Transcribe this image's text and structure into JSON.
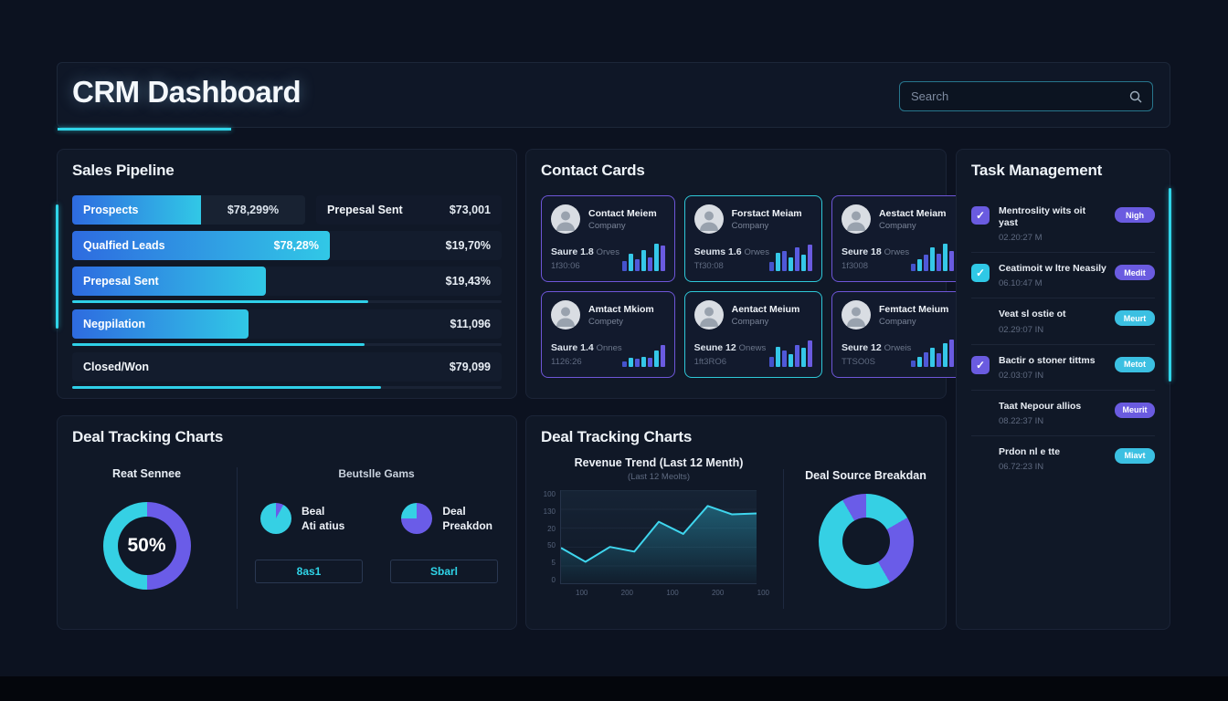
{
  "colors": {
    "accent": "#2fd4e8",
    "purple": "#6a5be0",
    "cyan": "#35c8e8"
  },
  "icons": {
    "check": "✓",
    "search": "magnifier"
  },
  "header": {
    "title": "CRM Dashboard",
    "search_placeholder": "Search"
  },
  "pipeline": {
    "title": "Sales Pipeline",
    "row1": {
      "label": "Prospects",
      "value": "$78,299%",
      "bar_pct": 30,
      "label2": "Prepesal Sent",
      "value2": "$73,001"
    },
    "rows": [
      {
        "label": "Qualfied Leads",
        "inner_value": "$78,28%",
        "value": "$19,70%",
        "bar_pct": 60
      },
      {
        "label": "Prepesal Sent",
        "value": "$19,43%",
        "bar_pct": 45,
        "line_pct": 69
      },
      {
        "label": "Negpilation",
        "value": "$11,096",
        "bar_pct": 41,
        "line_pct": 68
      },
      {
        "label": "Closed/Won",
        "value": "$79,099",
        "line_pct": 72
      }
    ]
  },
  "contacts": {
    "title": "Contact Cards",
    "spark_colors": [
      "#4553cc",
      "#35c8e8",
      "#5058d8",
      "#35c8e8",
      "#5a5be0",
      "#35c8e8",
      "#6a5be0"
    ],
    "cards": [
      {
        "name": "Contact Meiem",
        "company": "Company",
        "score": "Saure 1.8",
        "score_sub": "Orves",
        "time": "1f30:06",
        "border": "purple",
        "spark": [
          34,
          58,
          40,
          72,
          48,
          95,
          88
        ]
      },
      {
        "name": "Forstact Meiam",
        "company": "Company",
        "score": "Seums 1.6",
        "score_sub": "Orwes",
        "time": "Tf30:08",
        "border": "cyan",
        "spark": [
          30,
          62,
          70,
          48,
          80,
          55,
          90
        ]
      },
      {
        "name": "Aestact Meiam",
        "company": "Company",
        "score": "Seure 18",
        "score_sub": "Orwes",
        "time": "1f3008",
        "border": "purple",
        "spark": [
          25,
          40,
          55,
          80,
          60,
          95,
          70
        ]
      },
      {
        "name": "Amtact Mkiom",
        "company": "Compety",
        "score": "Saure 1.4",
        "score_sub": "Onnes",
        "time": "1126:26",
        "border": "purple",
        "spark": [
          18,
          30,
          28,
          35,
          30,
          55,
          75
        ]
      },
      {
        "name": "Aentact Meium",
        "company": "Company",
        "score": "Seune 12",
        "score_sub": "Onews",
        "time": "1ft3RO6",
        "border": "cyan",
        "spark": [
          35,
          70,
          55,
          45,
          75,
          65,
          90
        ]
      },
      {
        "name": "Femtact Meium",
        "company": "Company",
        "score": "Seure 12",
        "score_sub": "Orweis",
        "time": "TTSO0S",
        "border": "purple",
        "spark": [
          22,
          35,
          50,
          65,
          48,
          80,
          95
        ]
      }
    ]
  },
  "tasks": {
    "title": "Task Management",
    "items": [
      {
        "title": "Mentroslity wits oit yast",
        "time": "02.20:27 M",
        "badge": "Nigh",
        "badge_color": "purple",
        "checkbox": "purple"
      },
      {
        "title": "Ceatimoit w ltre Neasily",
        "time": "06.10:47 M",
        "badge": "Medit",
        "badge_color": "purple",
        "checkbox": "cyan"
      },
      {
        "title": "Veat sl ostie ot",
        "time": "02.29:07 IN",
        "badge": "Meurt",
        "badge_color": "cyan",
        "checkbox": null
      },
      {
        "title": "Bactir o stoner tittms",
        "time": "02.03:07 IN",
        "badge": "Metot",
        "badge_color": "cyan",
        "checkbox": "purple"
      },
      {
        "title": "Taat Nepour allios",
        "time": "08.22:37 IN",
        "badge": "Meurit",
        "badge_color": "purple",
        "checkbox": null
      },
      {
        "title": "Prdon nl e tte",
        "time": "06.72:23 IN",
        "badge": "Miavt",
        "badge_color": "cyan",
        "checkbox": null
      }
    ]
  },
  "deal_left": {
    "title": "Deal Tracking Charts",
    "gauge_title": "Reat Sennee",
    "right_title": "Beutslle Gams",
    "pie1_label1": "Beal",
    "pie1_label2": "Ati atius",
    "pie2_label1": "Deal",
    "pie2_label2": "Preakdon",
    "button1": "8as1",
    "button2": "Sbarl"
  },
  "deal_right": {
    "title": "Deal Tracking Charts",
    "chart_title": "Revenue Trend (Last 12 Menth)",
    "chart_subtitle": "(Last 12 Meolts)",
    "donut_title": "Deal Source Breakdan"
  },
  "chart_data": [
    {
      "id": "deal-gauge-donut",
      "type": "pie",
      "title": "Reat Sennee",
      "center_label": "50%",
      "segments": [
        {
          "label": "right-half",
          "value": 50,
          "color": "#6a5ce8"
        },
        {
          "label": "left-half",
          "value": 50,
          "color": "#35d0e4"
        }
      ]
    },
    {
      "id": "deal-attributes-pie",
      "type": "pie",
      "title": "Beal Ati atius",
      "segments": [
        {
          "value": 8,
          "color": "#6a5ce8"
        },
        {
          "value": 92,
          "color": "#35d0e4"
        }
      ]
    },
    {
      "id": "deal-breakdown-pie",
      "type": "pie",
      "title": "Deal Preakdon",
      "rotate": 270,
      "segments": [
        {
          "value": 25,
          "color": "#35d0e4"
        },
        {
          "value": 75,
          "color": "#6a5ce8"
        }
      ]
    },
    {
      "id": "revenue-trend",
      "type": "area",
      "title": "Revenue Trend (Last 12 Menth)",
      "subtitle": "(Last 12 Meolts)",
      "values": [
        38,
        23,
        39,
        34,
        66,
        53,
        83,
        74,
        75
      ],
      "ylim": [
        0,
        100
      ],
      "y_ticks": [
        "100",
        "130",
        "20",
        "50",
        "5",
        "0"
      ],
      "x_ticks": [
        "100",
        "200",
        "100",
        "200",
        "100"
      ],
      "line_color": "#3fd6ee",
      "legend": "none",
      "grid": true
    },
    {
      "id": "deal-source-donut",
      "type": "pie",
      "title": "Deal Source Breakdan",
      "segments": [
        {
          "value": 16.7,
          "color": "#35d0e4"
        },
        {
          "value": 25,
          "color": "#6a5ce8"
        },
        {
          "value": 50,
          "color": "#35d0e4"
        },
        {
          "value": 8.3,
          "color": "#6a5ce8"
        }
      ]
    }
  ]
}
